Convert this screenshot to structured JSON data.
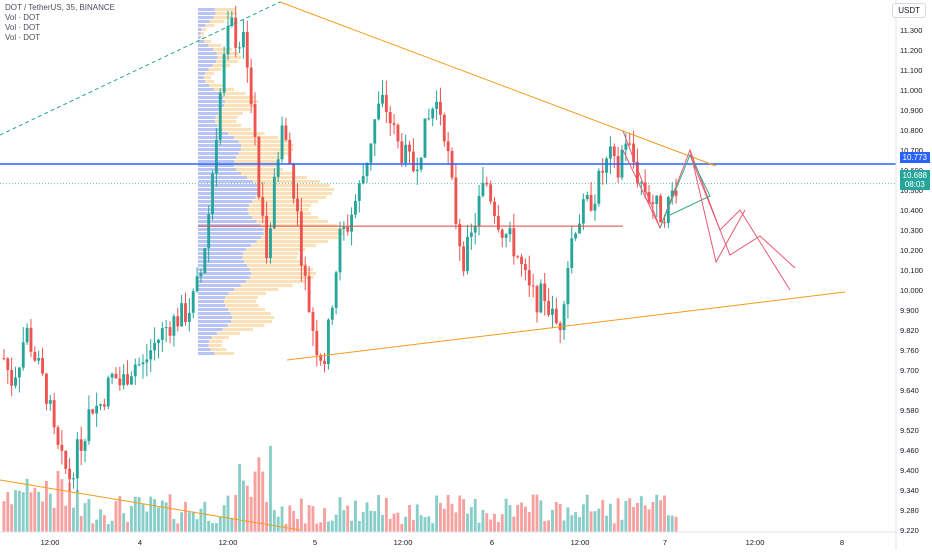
{
  "legend": {
    "symbol_line": "DOT / TetherUS, 35, BINANCE",
    "vol_lines": [
      "Vol · DOT",
      "Vol · DOT",
      "Vol · DOT"
    ]
  },
  "currency": "USDT",
  "tags": {
    "blue_line_price": "10.773",
    "last_price": "10.688",
    "countdown": "08:03"
  },
  "colors": {
    "up": "#26a69a",
    "down": "#ef5350",
    "blue_line": "#2962ff",
    "orange": "#f59b1c",
    "red_line": "#e0453a",
    "profile_blue": "#b8c4f5",
    "profile_orange": "#fbe0b8"
  },
  "chart_data": {
    "type": "candlestick",
    "title": "DOT / TetherUS, 35, BINANCE",
    "y_ticks": [
      "11.400",
      "11.300",
      "11.200",
      "11.100",
      "11.000",
      "10.900",
      "10.800",
      "10.700",
      "10.600",
      "10.500",
      "10.400",
      "10.300",
      "10.200",
      "10.100",
      "10.000",
      "9.900",
      "9.820",
      "9.760",
      "9.700",
      "9.640",
      "9.580",
      "9.520",
      "9.460",
      "9.400",
      "9.340",
      "9.280",
      "9.220"
    ],
    "x_ticks": [
      "12:00",
      "4",
      "12:00",
      "5",
      "12:00",
      "6",
      "12:00",
      "7",
      "12:00",
      "8"
    ],
    "y_range": [
      9.2,
      11.45
    ],
    "horizontal_levels": [
      {
        "name": "resistance",
        "price": 10.773
      },
      {
        "name": "poc",
        "price": 10.5
      }
    ],
    "price_path": [
      9.92,
      9.82,
      9.9,
      10.05,
      9.95,
      9.85,
      9.75,
      9.55,
      9.45,
      9.4,
      9.5,
      9.6,
      9.72,
      9.7,
      9.78,
      9.85,
      9.8,
      9.86,
      9.9,
      9.88,
      9.95,
      10.0,
      10.05,
      10.08,
      10.1,
      10.12,
      10.18,
      10.3,
      10.55,
      10.9,
      11.2,
      11.4,
      11.3,
      11.35,
      11.0,
      10.6,
      10.4,
      10.7,
      10.95,
      10.8,
      10.6,
      10.3,
      10.1,
      9.95,
      9.92,
      10.2,
      10.45,
      10.5,
      10.6,
      10.7,
      10.85,
      11.0,
      11.05,
      10.95,
      10.85,
      10.8,
      10.75,
      10.85,
      10.95,
      11.05,
      11.0,
      10.75,
      10.5,
      10.35,
      10.45,
      10.6,
      10.7,
      10.6,
      10.5,
      10.45,
      10.4,
      10.3,
      10.2,
      10.18,
      10.2,
      10.1,
      10.05,
      10.3,
      10.5,
      10.55,
      10.6,
      10.65,
      10.75,
      10.8,
      10.72,
      10.9,
      10.8,
      10.7,
      10.65,
      10.6,
      10.55,
      10.6,
      10.688
    ]
  }
}
